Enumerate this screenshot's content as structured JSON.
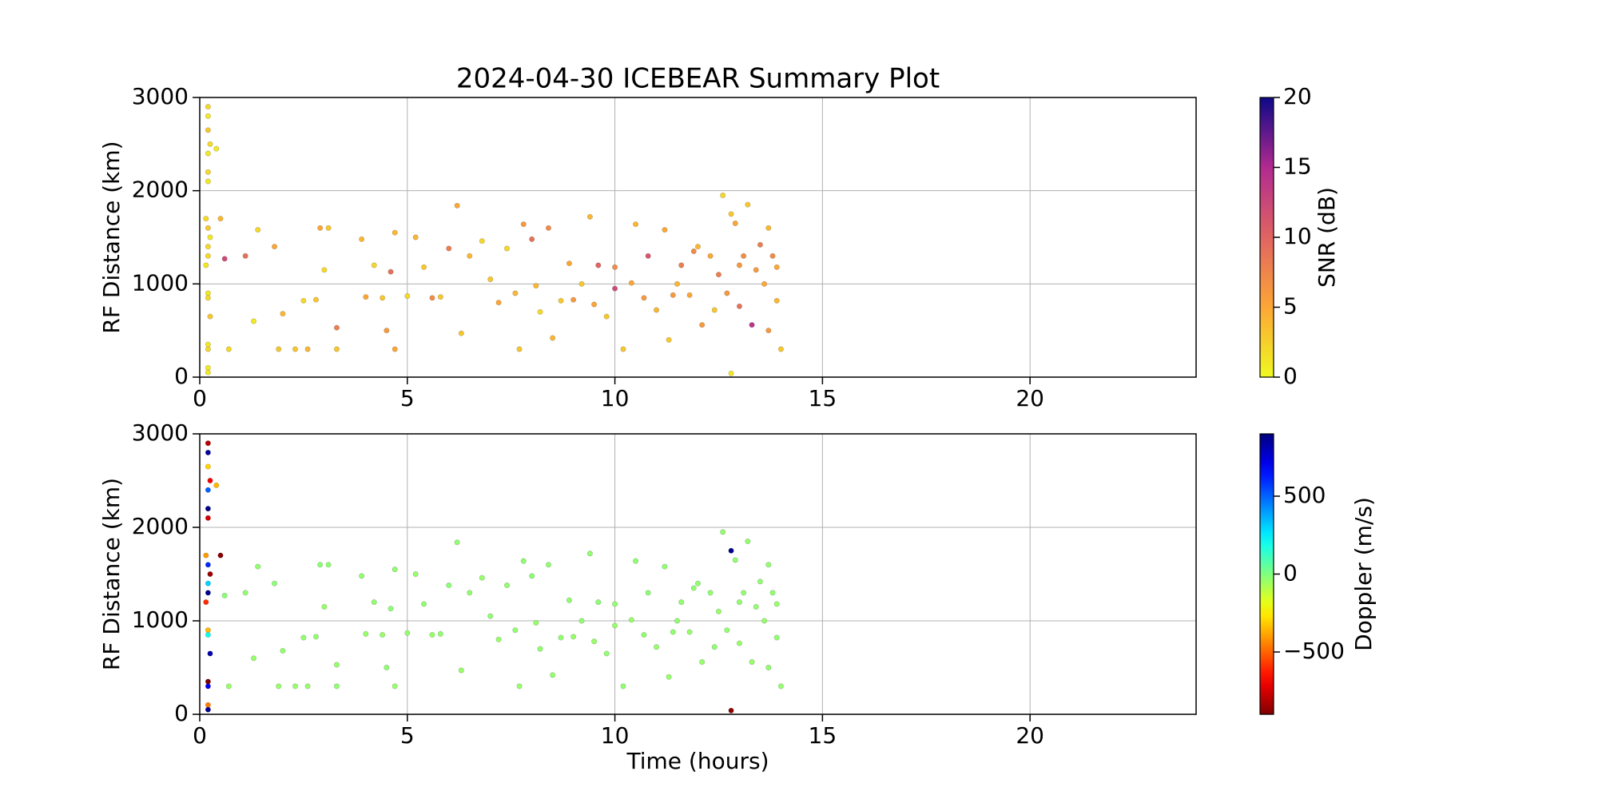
{
  "chart_data": [
    {
      "type": "scatter",
      "title": "2024-04-30 ICEBEAR Summary Plot",
      "ylabel": "RF Distance (km)",
      "xlim": [
        0,
        24
      ],
      "xticks": [
        0,
        5,
        10,
        15,
        20
      ],
      "ylim": [
        0,
        3000
      ],
      "yticks": [
        0,
        1000,
        2000,
        3000
      ],
      "grid": true,
      "x": [
        0.2,
        0.2,
        0.2,
        0.25,
        0.2,
        0.2,
        0.2,
        0.15,
        0.2,
        0.25,
        0.2,
        0.2,
        0.15,
        0.2,
        0.2,
        0.25,
        0.2,
        0.2,
        0.2,
        0.2,
        0.4,
        0.5,
        0.6,
        0.7,
        1.1,
        1.3,
        1.4,
        1.8,
        1.9,
        2.0,
        2.3,
        2.5,
        2.6,
        2.8,
        2.9,
        3.0,
        3.1,
        3.3,
        3.3,
        3.9,
        4.0,
        4.2,
        4.4,
        4.5,
        4.6,
        4.7,
        4.7,
        5.0,
        5.2,
        5.4,
        5.6,
        5.8,
        6.0,
        6.2,
        6.3,
        6.5,
        6.8,
        7.0,
        7.2,
        7.4,
        7.6,
        7.7,
        7.8,
        8.0,
        8.1,
        8.2,
        8.4,
        8.5,
        8.7,
        8.9,
        9.0,
        9.2,
        9.4,
        9.5,
        9.6,
        9.8,
        10.0,
        10.0,
        10.2,
        10.4,
        10.5,
        10.7,
        10.8,
        11.0,
        11.2,
        11.3,
        11.4,
        11.5,
        11.6,
        11.8,
        11.9,
        12.0,
        12.1,
        12.3,
        12.4,
        12.5,
        12.6,
        12.7,
        12.8,
        12.8,
        12.9,
        13.0,
        13.0,
        13.1,
        13.2,
        13.3,
        13.4,
        13.5,
        13.6,
        13.7,
        13.7,
        13.8,
        13.9,
        13.9,
        14.0
      ],
      "y": [
        2900,
        2800,
        2650,
        2500,
        2400,
        2200,
        2100,
        1700,
        1600,
        1500,
        1400,
        1300,
        1200,
        900,
        850,
        650,
        350,
        300,
        100,
        50,
        2450,
        1700,
        1270,
        300,
        1300,
        600,
        1580,
        1400,
        300,
        680,
        300,
        820,
        300,
        830,
        1600,
        1150,
        1600,
        530,
        300,
        1480,
        860,
        1200,
        850,
        500,
        1130,
        1550,
        300,
        870,
        1500,
        1180,
        850,
        860,
        1380,
        1840,
        470,
        1300,
        1460,
        1050,
        800,
        1380,
        900,
        300,
        1640,
        1480,
        980,
        700,
        1600,
        420,
        820,
        1220,
        830,
        1000,
        1720,
        780,
        1200,
        650,
        1180,
        950,
        300,
        1010,
        1640,
        850,
        1300,
        720,
        1580,
        400,
        880,
        1000,
        1200,
        880,
        1350,
        1400,
        560,
        1300,
        720,
        1100,
        1950,
        900,
        40,
        1750,
        1650,
        760,
        1200,
        1300,
        1850,
        560,
        1150,
        1420,
        1000,
        1600,
        500,
        1300,
        1180,
        820,
        300
      ],
      "c": [
        2,
        1,
        3,
        2,
        1,
        2,
        1,
        2,
        3,
        1,
        2,
        2,
        1,
        1,
        2,
        3,
        1,
        2,
        1,
        1,
        1,
        4,
        12,
        2,
        9,
        1,
        2,
        5,
        3,
        4,
        3,
        2,
        4,
        3,
        5,
        2,
        3,
        8,
        3,
        4,
        5,
        2,
        3,
        6,
        9,
        4,
        5,
        2,
        4,
        3,
        7,
        3,
        8,
        5,
        3,
        4,
        2,
        3,
        5,
        2,
        4,
        3,
        6,
        9,
        4,
        2,
        7,
        4,
        3,
        5,
        6,
        3,
        4,
        5,
        10,
        3,
        7,
        12,
        3,
        5,
        4,
        6,
        11,
        4,
        5,
        3,
        6,
        4,
        8,
        5,
        7,
        4,
        6,
        5,
        3,
        8,
        2,
        6,
        1,
        3,
        5,
        9,
        6,
        7,
        3,
        14,
        6,
        8,
        5,
        4,
        6,
        7,
        5,
        4,
        3
      ],
      "colorbar": {
        "label": "SNR (dB)",
        "colormap": "plasma_r",
        "lim": [
          0,
          20
        ],
        "ticks": [
          0,
          5,
          10,
          15,
          20
        ]
      }
    },
    {
      "type": "scatter",
      "ylabel": "RF Distance (km)",
      "xlabel": "Time (hours)",
      "xlim": [
        0,
        24
      ],
      "xticks": [
        0,
        5,
        10,
        15,
        20
      ],
      "ylim": [
        0,
        3000
      ],
      "yticks": [
        0,
        1000,
        2000,
        3000
      ],
      "grid": true,
      "x": [
        0.2,
        0.2,
        0.2,
        0.25,
        0.2,
        0.2,
        0.2,
        0.15,
        0.2,
        0.25,
        0.2,
        0.2,
        0.15,
        0.2,
        0.2,
        0.25,
        0.2,
        0.2,
        0.2,
        0.2,
        0.4,
        0.5,
        0.6,
        0.7,
        1.1,
        1.3,
        1.4,
        1.8,
        1.9,
        2.0,
        2.3,
        2.5,
        2.6,
        2.8,
        2.9,
        3.0,
        3.1,
        3.3,
        3.3,
        3.9,
        4.0,
        4.2,
        4.4,
        4.5,
        4.6,
        4.7,
        4.7,
        5.0,
        5.2,
        5.4,
        5.6,
        5.8,
        6.0,
        6.2,
        6.3,
        6.5,
        6.8,
        7.0,
        7.2,
        7.4,
        7.6,
        7.7,
        7.8,
        8.0,
        8.1,
        8.2,
        8.4,
        8.5,
        8.7,
        8.9,
        9.0,
        9.2,
        9.4,
        9.5,
        9.6,
        9.8,
        10.0,
        10.0,
        10.2,
        10.4,
        10.5,
        10.7,
        10.8,
        11.0,
        11.2,
        11.3,
        11.4,
        11.5,
        11.6,
        11.8,
        11.9,
        12.0,
        12.1,
        12.3,
        12.4,
        12.5,
        12.6,
        12.7,
        12.8,
        12.8,
        12.9,
        13.0,
        13.0,
        13.1,
        13.2,
        13.3,
        13.4,
        13.5,
        13.6,
        13.7,
        13.7,
        13.8,
        13.9,
        13.9,
        14.0
      ],
      "y": [
        2900,
        2800,
        2650,
        2500,
        2400,
        2200,
        2100,
        1700,
        1600,
        1500,
        1400,
        1300,
        1200,
        900,
        850,
        650,
        350,
        300,
        100,
        50,
        2450,
        1700,
        1270,
        300,
        1300,
        600,
        1580,
        1400,
        300,
        680,
        300,
        820,
        300,
        830,
        1600,
        1150,
        1600,
        530,
        300,
        1480,
        860,
        1200,
        850,
        500,
        1130,
        1550,
        300,
        870,
        1500,
        1180,
        850,
        860,
        1380,
        1840,
        470,
        1300,
        1460,
        1050,
        800,
        1380,
        900,
        300,
        1640,
        1480,
        980,
        700,
        1600,
        420,
        820,
        1220,
        830,
        1000,
        1720,
        780,
        1200,
        650,
        1180,
        950,
        300,
        1010,
        1640,
        850,
        1300,
        720,
        1580,
        400,
        880,
        1000,
        1200,
        880,
        1350,
        1400,
        560,
        1300,
        720,
        1100,
        1950,
        900,
        40,
        1750,
        1650,
        760,
        1200,
        1300,
        1850,
        560,
        1150,
        1420,
        1000,
        1600,
        500,
        1300,
        1180,
        820,
        300
      ],
      "c": [
        -800,
        850,
        -300,
        -700,
        500,
        900,
        -750,
        -400,
        600,
        -850,
        300,
        880,
        -600,
        -350,
        200,
        820,
        -900,
        700,
        -450,
        860,
        -350,
        -880,
        -20,
        -40,
        -30,
        -40,
        -30,
        -20,
        -40,
        -30,
        -40,
        -30,
        -40,
        -30,
        -20,
        -40,
        -30,
        -40,
        -30,
        -30,
        -40,
        -30,
        -40,
        -30,
        -20,
        -30,
        -40,
        -30,
        -40,
        -30,
        -40,
        -30,
        -20,
        -30,
        -40,
        -30,
        -40,
        -30,
        -40,
        -30,
        -30,
        -40,
        -30,
        -20,
        -40,
        -30,
        -30,
        -40,
        -30,
        -30,
        -40,
        -30,
        -30,
        -40,
        -20,
        -30,
        -30,
        -40,
        -30,
        -40,
        -30,
        -30,
        -20,
        -40,
        -30,
        -40,
        -30,
        -30,
        -30,
        -40,
        -30,
        -30,
        -40,
        -30,
        -30,
        -40,
        -30,
        -30,
        -880,
        880,
        -30,
        -40,
        -30,
        -30,
        -30,
        -40,
        -30,
        -30,
        -40,
        -30,
        -30,
        -30,
        -40,
        -30,
        -30
      ],
      "colorbar": {
        "label": "Doppler (m/s)",
        "colormap": "jet_r",
        "lim": [
          -900,
          900
        ],
        "ticks": [
          {
            "value": -500,
            "label": "−500"
          },
          0,
          500
        ]
      }
    }
  ]
}
